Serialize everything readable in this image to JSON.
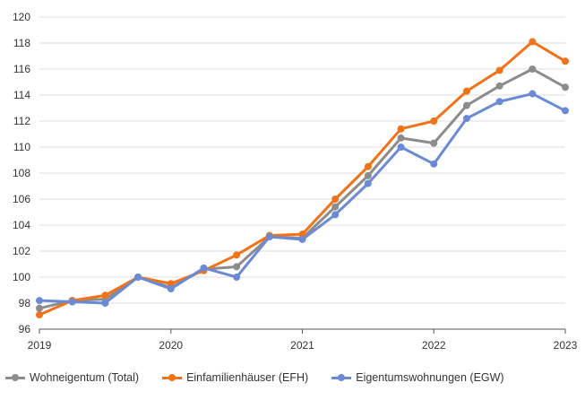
{
  "chart_data": {
    "type": "line",
    "x": [
      2019.0,
      2019.25,
      2019.5,
      2019.75,
      2020.0,
      2020.25,
      2020.5,
      2020.75,
      2021.0,
      2021.25,
      2021.5,
      2021.75,
      2022.0,
      2022.25,
      2022.5,
      2022.75,
      2023.0
    ],
    "series": [
      {
        "name": "Wohneigentum (Total)",
        "color": "#8c8c8c",
        "values": [
          97.6,
          98.2,
          98.3,
          100.0,
          99.2,
          100.6,
          100.8,
          103.1,
          103.0,
          105.4,
          107.8,
          110.7,
          110.3,
          113.2,
          114.7,
          116.0,
          114.6
        ]
      },
      {
        "name": "Einfamilienhäuser (EFH)",
        "color": "#f07319",
        "values": [
          97.1,
          98.2,
          98.6,
          100.0,
          99.5,
          100.5,
          101.7,
          103.2,
          103.3,
          106.0,
          108.5,
          111.4,
          112.0,
          114.3,
          115.9,
          118.1,
          116.6
        ]
      },
      {
        "name": "Eigentumswohnungen (EGW)",
        "color": "#6b8ad6",
        "values": [
          98.2,
          98.1,
          98.0,
          100.0,
          99.1,
          100.7,
          100.0,
          103.1,
          102.9,
          104.8,
          107.2,
          110.0,
          108.7,
          112.2,
          113.5,
          114.1,
          112.8
        ]
      }
    ],
    "xticks": [
      "2019",
      "2020",
      "2021",
      "2022",
      "2023"
    ],
    "xtick_values": [
      2019,
      2020,
      2021,
      2022,
      2023
    ],
    "yticks": [
      "96",
      "98",
      "100",
      "102",
      "104",
      "106",
      "108",
      "110",
      "112",
      "114",
      "116",
      "118",
      "120"
    ],
    "ytick_values": [
      96,
      98,
      100,
      102,
      104,
      106,
      108,
      110,
      112,
      114,
      116,
      118,
      120
    ],
    "xlim": [
      2019,
      2023
    ],
    "ylim": [
      96,
      120
    ],
    "title": "",
    "xlabel": "",
    "ylabel": "",
    "grid": "horizontal",
    "legend_position": "bottom"
  }
}
